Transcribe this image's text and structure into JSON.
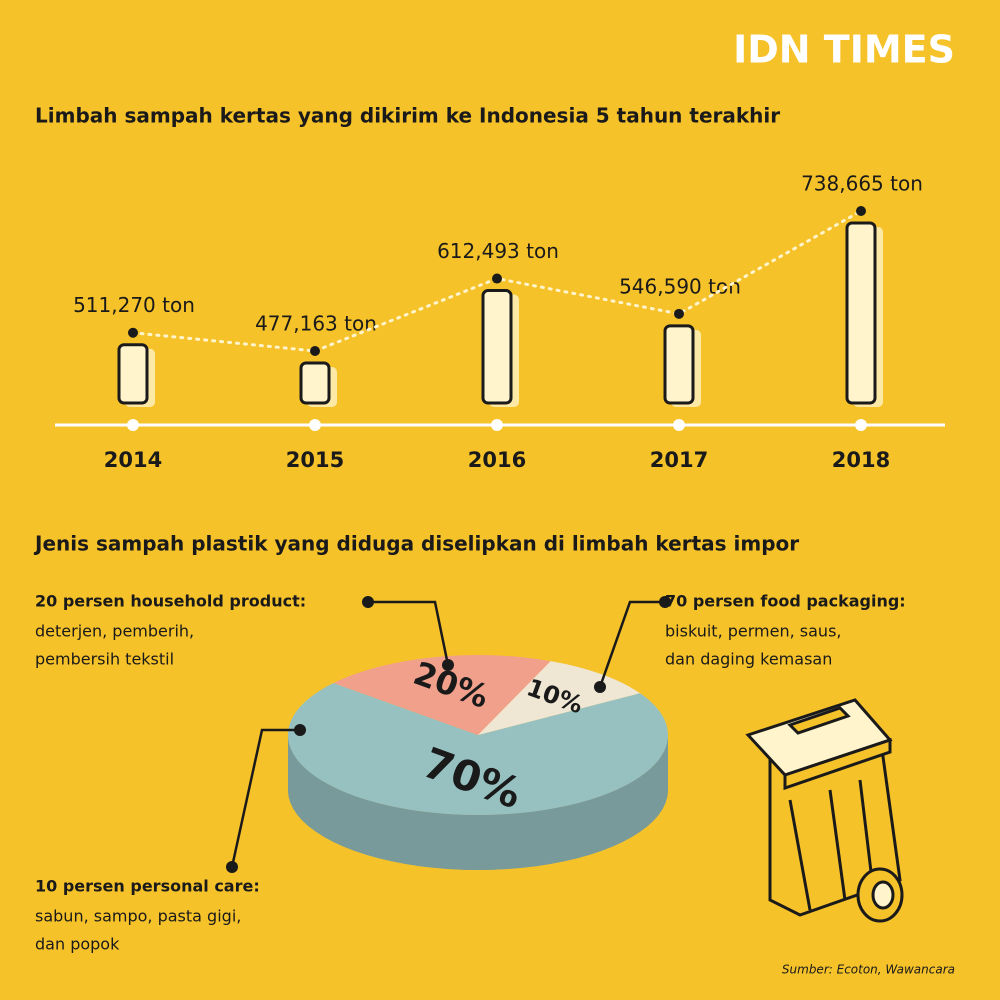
{
  "header": {
    "logo": "IDN TIMES"
  },
  "chart_data": [
    {
      "type": "bar",
      "title": "Limbah sampah kertas yang dikirim ke Indonesia 5 tahun terakhir",
      "categories": [
        "2014",
        "2015",
        "2016",
        "2017",
        "2018"
      ],
      "values": [
        511270,
        477163,
        612493,
        546590,
        738665
      ],
      "value_labels": [
        "511,270 ton",
        "477,163 ton",
        "612,493 ton",
        "546,590 ton",
        "738,665 ton"
      ],
      "color": "#fff4cc"
    },
    {
      "type": "pie",
      "title": "Jenis sampah plastik yang diduga diselipkan di limbah kertas impor",
      "values": [
        70,
        20,
        10
      ],
      "value_labels": [
        "70%",
        "20%",
        "10%"
      ],
      "colors": [
        "#97c1c1",
        "#f1a08b",
        "#efe6d4"
      ],
      "annotations": [
        {
          "title": "70 persen food packaging:",
          "text": [
            "biskuit, permen, saus,",
            "dan daging kemasan"
          ]
        },
        {
          "title": "20 persen household product:",
          "text": [
            "deterjen, pemberih,",
            "pembersih tekstil"
          ]
        },
        {
          "title": "10 persen personal care:",
          "text": [
            "sabun, sampo, pasta gigi,",
            "dan popok"
          ]
        }
      ]
    }
  ],
  "source": "Sumber: Ecoton, Wawancara"
}
